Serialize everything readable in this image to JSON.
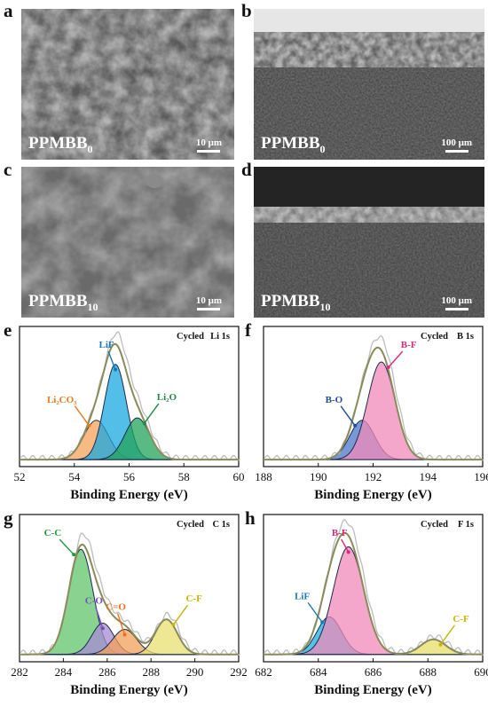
{
  "sem_panels": [
    {
      "letter": "a",
      "sample": "PPMBB",
      "sub": "0",
      "scale": "10 μm",
      "style": "rough"
    },
    {
      "letter": "b",
      "sample": "PPMBB",
      "sub": "0",
      "scale": "100 μm",
      "style": "cross-thick"
    },
    {
      "letter": "c",
      "sample": "PPMBB",
      "sub": "10",
      "scale": "10 μm",
      "style": "smooth"
    },
    {
      "letter": "d",
      "sample": "PPMBB",
      "sub": "10",
      "scale": "100 μm",
      "style": "cross-thin"
    }
  ],
  "chart_data": [
    {
      "letter": "e",
      "type": "area",
      "annotation_left": "Cycled",
      "annotation_right": "Li 1s",
      "xlabel": "Binding Energy (eV)",
      "xlim": [
        52,
        60
      ],
      "xticks": [
        52,
        54,
        56,
        58,
        60
      ],
      "ylabel": "",
      "grid": false,
      "peaks": [
        {
          "name": "Li2CO3",
          "label": "Li₂CO₃",
          "center": 54.8,
          "height": 0.33,
          "sigma": 0.45,
          "color": "#f5a15a",
          "label_color": "#e87a1c"
        },
        {
          "name": "LiF",
          "label": "LiF",
          "center": 55.5,
          "height": 0.8,
          "sigma": 0.4,
          "color": "#1aa8e0",
          "label_color": "#1a78b8"
        },
        {
          "name": "Li2O",
          "label": "Li₂O",
          "center": 56.3,
          "height": 0.35,
          "sigma": 0.45,
          "color": "#22a35a",
          "label_color": "#1e8a46"
        }
      ]
    },
    {
      "letter": "f",
      "type": "area",
      "annotation_left": "Cycled",
      "annotation_right": "B 1s",
      "xlabel": "Binding Energy (eV)",
      "xlim": [
        188,
        196
      ],
      "xticks": [
        188,
        190,
        192,
        194,
        196
      ],
      "ylabel": "",
      "grid": false,
      "peaks": [
        {
          "name": "B-O",
          "label": "B-O",
          "center": 191.6,
          "height": 0.33,
          "sigma": 0.45,
          "color": "#4a78c8",
          "label_color": "#1f4e96"
        },
        {
          "name": "B-F",
          "label": "B-F",
          "center": 192.3,
          "height": 0.82,
          "sigma": 0.5,
          "color": "#f08ab8",
          "label_color": "#e0287a"
        }
      ]
    },
    {
      "letter": "g",
      "type": "area",
      "annotation_left": "Cycled",
      "annotation_right": "C 1s",
      "xlabel": "Binding Energy (eV)",
      "xlim": [
        282,
        292
      ],
      "xticks": [
        282,
        284,
        286,
        288,
        290,
        292
      ],
      "ylabel": "",
      "grid": false,
      "peaks": [
        {
          "name": "C-C",
          "label": "C-C",
          "center": 284.8,
          "height": 0.84,
          "sigma": 0.55,
          "color": "#5fc46a",
          "label_color": "#1e9a3a"
        },
        {
          "name": "C-O",
          "label": "C-O",
          "center": 285.8,
          "height": 0.25,
          "sigma": 0.5,
          "color": "#a78bd6",
          "label_color": "#7a4cc0"
        },
        {
          "name": "C=O",
          "label": "C=O",
          "center": 286.8,
          "height": 0.2,
          "sigma": 0.55,
          "color": "#f3a05a",
          "label_color": "#e8721c"
        },
        {
          "name": "C-F",
          "label": "C-F",
          "center": 288.7,
          "height": 0.28,
          "sigma": 0.5,
          "color": "#e8e070",
          "label_color": "#c9b400"
        }
      ]
    },
    {
      "letter": "h",
      "type": "area",
      "annotation_left": "Cycled",
      "annotation_right": "F 1s",
      "xlabel": "Binding Energy (eV)",
      "xlim": [
        682,
        690
      ],
      "xticks": [
        682,
        684,
        686,
        688,
        690
      ],
      "ylabel": "",
      "grid": false,
      "peaks": [
        {
          "name": "LiF",
          "label": "LiF",
          "center": 684.4,
          "height": 0.3,
          "sigma": 0.45,
          "color": "#1ab0e0",
          "label_color": "#1a78b8"
        },
        {
          "name": "B-F",
          "label": "B-F",
          "center": 685.1,
          "height": 0.86,
          "sigma": 0.55,
          "color": "#f08ab8",
          "label_color": "#e0287a"
        },
        {
          "name": "C-F",
          "label": "C-F",
          "center": 688.2,
          "height": 0.12,
          "sigma": 0.45,
          "color": "#e8dc6a",
          "label_color": "#c9b400"
        }
      ]
    }
  ]
}
